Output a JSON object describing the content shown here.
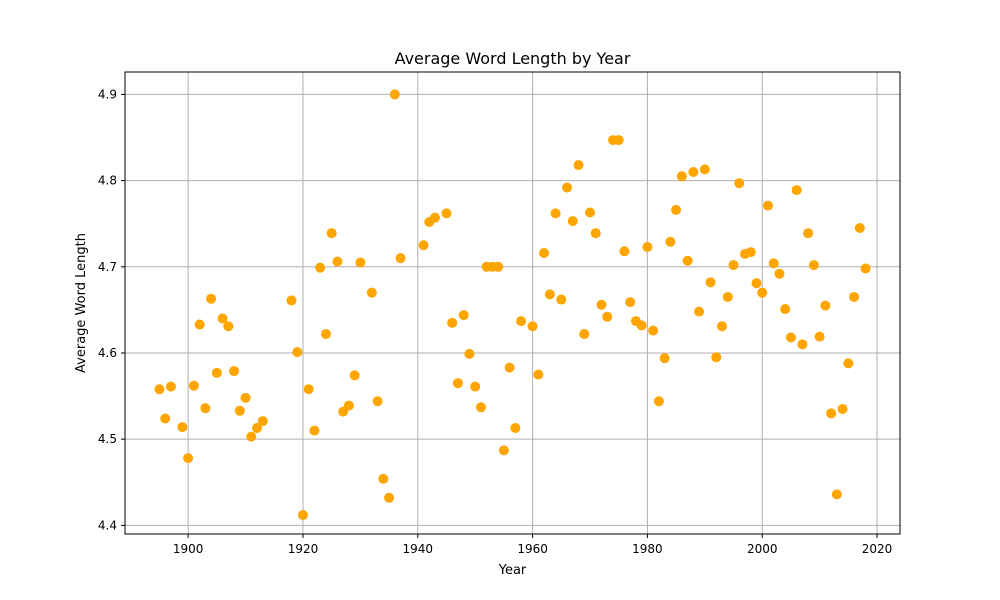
{
  "chart_data": {
    "type": "scatter",
    "title": "Average Word Length by Year",
    "xlabel": "Year",
    "ylabel": "Average Word Length",
    "xlim": [
      1889,
      2024
    ],
    "ylim": [
      4.39,
      4.926
    ],
    "xticks": [
      1900,
      1920,
      1940,
      1960,
      1980,
      2000,
      2020
    ],
    "xtick_labels": [
      "1900",
      "1920",
      "1940",
      "1960",
      "1980",
      "2000",
      "2020"
    ],
    "yticks": [
      4.4,
      4.5,
      4.6,
      4.7,
      4.8,
      4.9
    ],
    "ytick_labels": [
      "4.4",
      "4.5",
      "4.6",
      "4.7",
      "4.8",
      "4.9"
    ],
    "grid": true,
    "point_color": "#FFA500",
    "points": [
      [
        1895,
        4.558
      ],
      [
        1896,
        4.524
      ],
      [
        1897,
        4.561
      ],
      [
        1899,
        4.514
      ],
      [
        1900,
        4.478
      ],
      [
        1901,
        4.562
      ],
      [
        1902,
        4.633
      ],
      [
        1903,
        4.536
      ],
      [
        1904,
        4.663
      ],
      [
        1905,
        4.577
      ],
      [
        1906,
        4.64
      ],
      [
        1907,
        4.631
      ],
      [
        1908,
        4.579
      ],
      [
        1909,
        4.533
      ],
      [
        1910,
        4.548
      ],
      [
        1911,
        4.503
      ],
      [
        1912,
        4.513
      ],
      [
        1913,
        4.521
      ],
      [
        1918,
        4.661
      ],
      [
        1919,
        4.601
      ],
      [
        1920,
        4.412
      ],
      [
        1921,
        4.558
      ],
      [
        1922,
        4.51
      ],
      [
        1923,
        4.699
      ],
      [
        1924,
        4.622
      ],
      [
        1925,
        4.739
      ],
      [
        1926,
        4.706
      ],
      [
        1927,
        4.532
      ],
      [
        1928,
        4.539
      ],
      [
        1929,
        4.574
      ],
      [
        1930,
        4.705
      ],
      [
        1932,
        4.67
      ],
      [
        1933,
        4.544
      ],
      [
        1934,
        4.454
      ],
      [
        1935,
        4.432
      ],
      [
        1936,
        4.9
      ],
      [
        1937,
        4.71
      ],
      [
        1941,
        4.725
      ],
      [
        1942,
        4.752
      ],
      [
        1943,
        4.757
      ],
      [
        1945,
        4.762
      ],
      [
        1946,
        4.635
      ],
      [
        1947,
        4.565
      ],
      [
        1948,
        4.644
      ],
      [
        1949,
        4.599
      ],
      [
        1950,
        4.561
      ],
      [
        1951,
        4.537
      ],
      [
        1952,
        4.7
      ],
      [
        1953,
        4.7
      ],
      [
        1954,
        4.7
      ],
      [
        1955,
        4.487
      ],
      [
        1956,
        4.583
      ],
      [
        1957,
        4.513
      ],
      [
        1958,
        4.637
      ],
      [
        1960,
        4.631
      ],
      [
        1961,
        4.575
      ],
      [
        1962,
        4.716
      ],
      [
        1963,
        4.668
      ],
      [
        1964,
        4.762
      ],
      [
        1965,
        4.662
      ],
      [
        1966,
        4.792
      ],
      [
        1967,
        4.753
      ],
      [
        1968,
        4.818
      ],
      [
        1969,
        4.622
      ],
      [
        1970,
        4.763
      ],
      [
        1971,
        4.739
      ],
      [
        1972,
        4.656
      ],
      [
        1973,
        4.642
      ],
      [
        1974,
        4.847
      ],
      [
        1975,
        4.847
      ],
      [
        1976,
        4.718
      ],
      [
        1977,
        4.659
      ],
      [
        1978,
        4.637
      ],
      [
        1979,
        4.632
      ],
      [
        1980,
        4.723
      ],
      [
        1981,
        4.626
      ],
      [
        1982,
        4.544
      ],
      [
        1983,
        4.594
      ],
      [
        1984,
        4.729
      ],
      [
        1985,
        4.766
      ],
      [
        1986,
        4.805
      ],
      [
        1987,
        4.707
      ],
      [
        1988,
        4.81
      ],
      [
        1989,
        4.648
      ],
      [
        1990,
        4.813
      ],
      [
        1991,
        4.682
      ],
      [
        1992,
        4.595
      ],
      [
        1993,
        4.631
      ],
      [
        1994,
        4.665
      ],
      [
        1995,
        4.702
      ],
      [
        1996,
        4.797
      ],
      [
        1997,
        4.715
      ],
      [
        1998,
        4.717
      ],
      [
        1999,
        4.681
      ],
      [
        2000,
        4.67
      ],
      [
        2001,
        4.771
      ],
      [
        2002,
        4.704
      ],
      [
        2003,
        4.692
      ],
      [
        2004,
        4.651
      ],
      [
        2005,
        4.618
      ],
      [
        2006,
        4.789
      ],
      [
        2007,
        4.61
      ],
      [
        2008,
        4.739
      ],
      [
        2009,
        4.702
      ],
      [
        2010,
        4.619
      ],
      [
        2011,
        4.655
      ],
      [
        2012,
        4.53
      ],
      [
        2013,
        4.436
      ],
      [
        2014,
        4.535
      ],
      [
        2015,
        4.588
      ],
      [
        2016,
        4.665
      ],
      [
        2017,
        4.745
      ],
      [
        2018,
        4.698
      ]
    ]
  }
}
